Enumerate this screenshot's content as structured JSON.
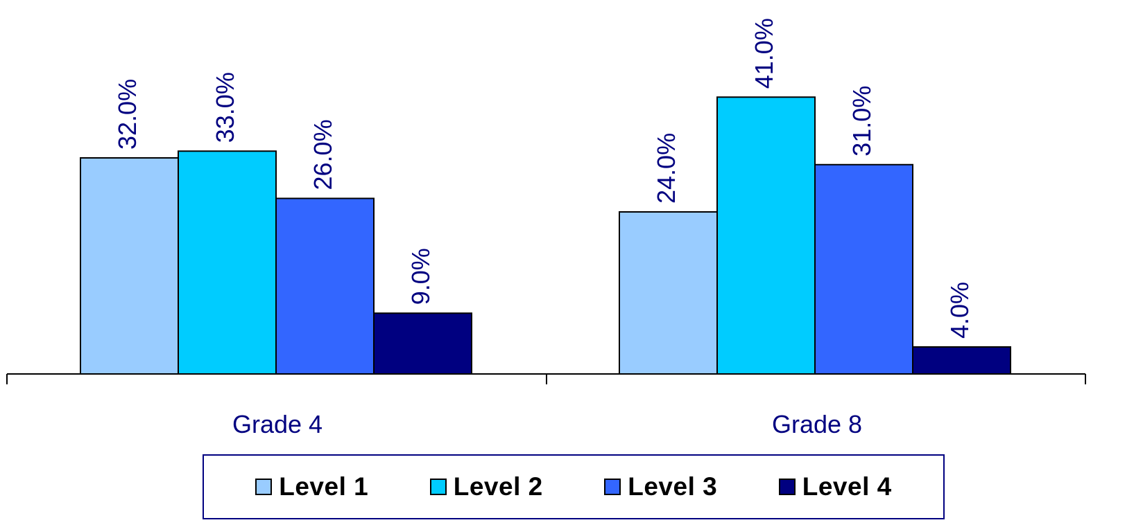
{
  "chart_data": {
    "type": "bar",
    "categories": [
      "Grade 4",
      "Grade 8"
    ],
    "series": [
      {
        "name": "Level 1",
        "values": [
          32.0,
          24.0
        ],
        "color": "#99CCFF"
      },
      {
        "name": "Level 2",
        "values": [
          33.0,
          41.0
        ],
        "color": "#00CCFF"
      },
      {
        "name": "Level 3",
        "values": [
          26.0,
          31.0
        ],
        "color": "#3366FF"
      },
      {
        "name": "Level 4",
        "values": [
          9.0,
          4.0
        ],
        "color": "#000080"
      }
    ],
    "data_label_format": "0.0%",
    "label_color": "#000080",
    "legend": "bottom",
    "grid": false
  }
}
